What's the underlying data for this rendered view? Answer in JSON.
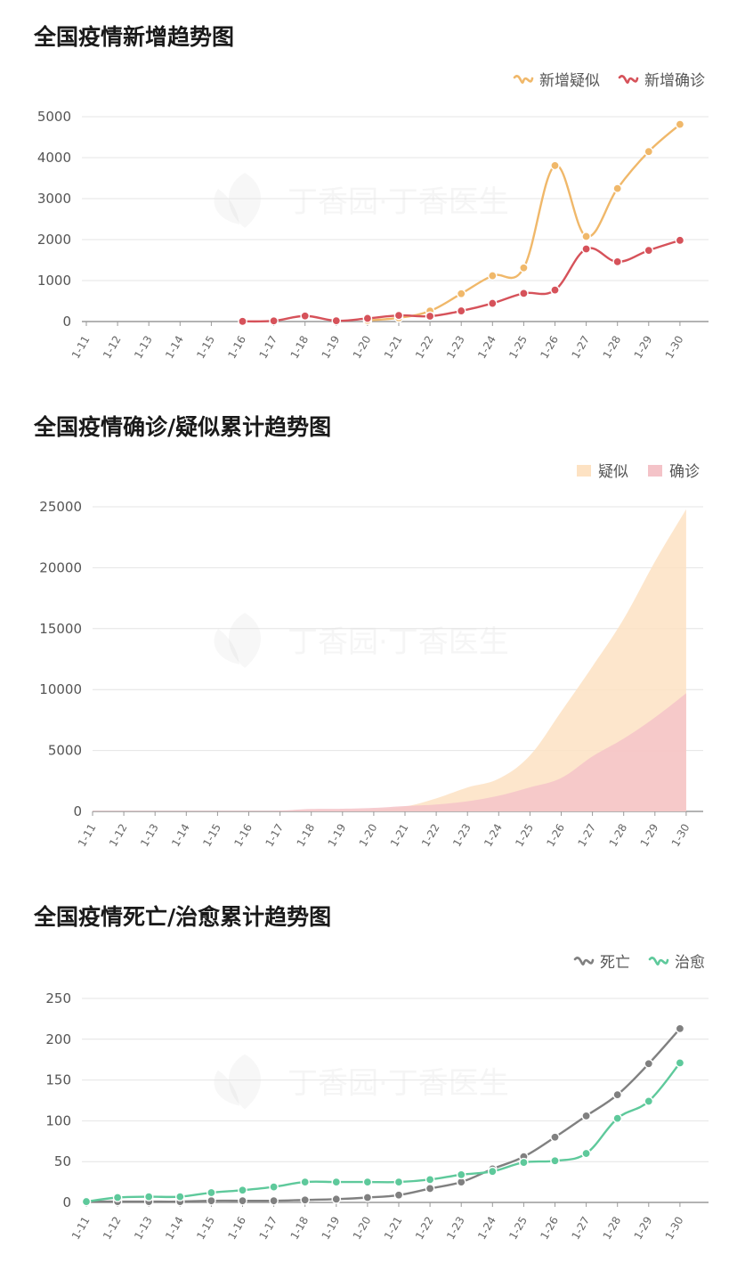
{
  "charts": [
    {
      "type": "line",
      "title": "全国疫情新增趋势图",
      "categories": [
        "1-11",
        "1-12",
        "1-13",
        "1-14",
        "1-15",
        "1-16",
        "1-17",
        "1-18",
        "1-19",
        "1-20",
        "1-21",
        "1-22",
        "1-23",
        "1-24",
        "1-25",
        "1-26",
        "1-27",
        "1-28",
        "1-29",
        "1-30"
      ],
      "ylim": [
        0,
        5000
      ],
      "yticks": [
        0,
        1000,
        2000,
        3000,
        4000,
        5000
      ],
      "grid": true,
      "legend_position": "top-right",
      "watermark": "丁香园·丁香医生",
      "series": [
        {
          "name": "新增疑似",
          "color": "#f0b86a",
          "values": [
            null,
            null,
            null,
            null,
            null,
            null,
            null,
            null,
            null,
            27,
            90,
            257,
            680,
            1118,
            1309,
            3806,
            2077,
            3248,
            4148,
            4812
          ]
        },
        {
          "name": "新增确诊",
          "color": "#d6525a",
          "values": [
            null,
            null,
            null,
            null,
            null,
            4,
            17,
            136,
            19,
            77,
            149,
            131,
            259,
            444,
            688,
            769,
            1771,
            1459,
            1737,
            1982
          ]
        }
      ]
    },
    {
      "type": "area",
      "title": "全国疫情确诊/疑似累计趋势图",
      "categories": [
        "1-11",
        "1-12",
        "1-13",
        "1-14",
        "1-15",
        "1-16",
        "1-17",
        "1-18",
        "1-19",
        "1-20",
        "1-21",
        "1-22",
        "1-23",
        "1-24",
        "1-25",
        "1-26",
        "1-27",
        "1-28",
        "1-29",
        "1-30"
      ],
      "ylim": [
        0,
        25000
      ],
      "yticks": [
        0,
        5000,
        10000,
        15000,
        20000,
        25000
      ],
      "grid": true,
      "legend_position": "top-right",
      "watermark": "丁香园·丁香医生",
      "series": [
        {
          "name": "疑似",
          "color": "#fde2c3",
          "values": [
            0,
            0,
            0,
            0,
            0,
            0,
            0,
            54,
            65,
            137,
            393,
            1072,
            1965,
            2684,
            4600,
            8200,
            11900,
            15800,
            20500,
            24800
          ]
        },
        {
          "name": "确诊",
          "color": "#f4c3c8",
          "values": [
            41,
            41,
            41,
            41,
            41,
            45,
            62,
            198,
            217,
            291,
            440,
            571,
            830,
            1287,
            1975,
            2744,
            4515,
            5974,
            7711,
            9692
          ]
        }
      ]
    },
    {
      "type": "line",
      "title": "全国疫情死亡/治愈累计趋势图",
      "categories": [
        "1-11",
        "1-12",
        "1-13",
        "1-14",
        "1-15",
        "1-16",
        "1-17",
        "1-18",
        "1-19",
        "1-20",
        "1-21",
        "1-22",
        "1-23",
        "1-24",
        "1-25",
        "1-26",
        "1-27",
        "1-28",
        "1-29",
        "1-30"
      ],
      "ylim": [
        0,
        250
      ],
      "yticks": [
        0,
        50,
        100,
        150,
        200,
        250
      ],
      "grid": true,
      "legend_position": "top-right",
      "watermark": "丁香园·丁香医生",
      "series": [
        {
          "name": "死亡",
          "color": "#808080",
          "values": [
            1,
            1,
            1,
            1,
            2,
            2,
            2,
            3,
            4,
            6,
            9,
            17,
            25,
            41,
            56,
            80,
            106,
            132,
            170,
            213
          ]
        },
        {
          "name": "治愈",
          "color": "#5ec99b",
          "values": [
            1,
            6,
            7,
            7,
            12,
            15,
            19,
            25,
            25,
            25,
            25,
            28,
            34,
            38,
            49,
            51,
            60,
            103,
            124,
            171
          ]
        }
      ]
    }
  ]
}
